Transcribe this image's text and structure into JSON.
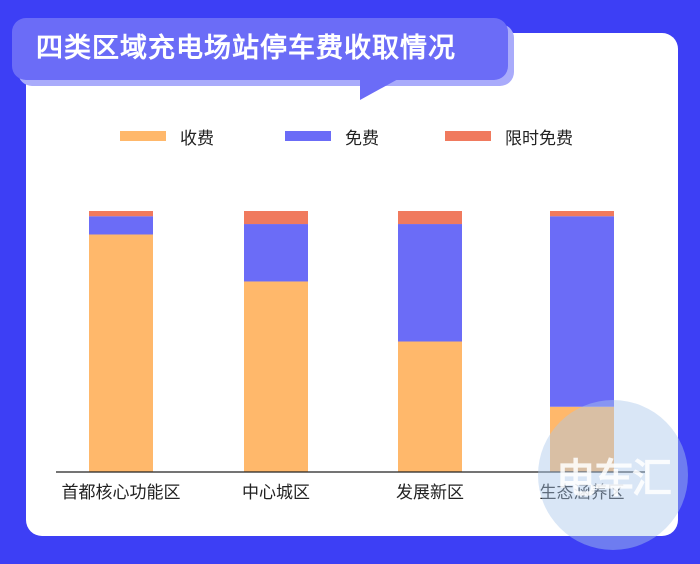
{
  "title": "四类区域充电场站停车费收取情况",
  "watermark_text": "电车汇",
  "colors": {
    "background": "#3d3ff5",
    "paid": "#ffb86b",
    "free": "#6b6cf7",
    "limited_free": "#f07a5e"
  },
  "chart_data": {
    "type": "bar",
    "stacked": true,
    "categories": [
      "首都核心功能区",
      "中心城区",
      "发展新区",
      "生态涵养区"
    ],
    "series": [
      {
        "name": "收费",
        "values": [
          91,
          73,
          50,
          25
        ]
      },
      {
        "name": "免费",
        "values": [
          7,
          22,
          45,
          73
        ]
      },
      {
        "name": "限时免费",
        "values": [
          2,
          5,
          5,
          2
        ]
      }
    ],
    "ylim": [
      0,
      100
    ],
    "grid": false,
    "legend_position": "top-center"
  }
}
